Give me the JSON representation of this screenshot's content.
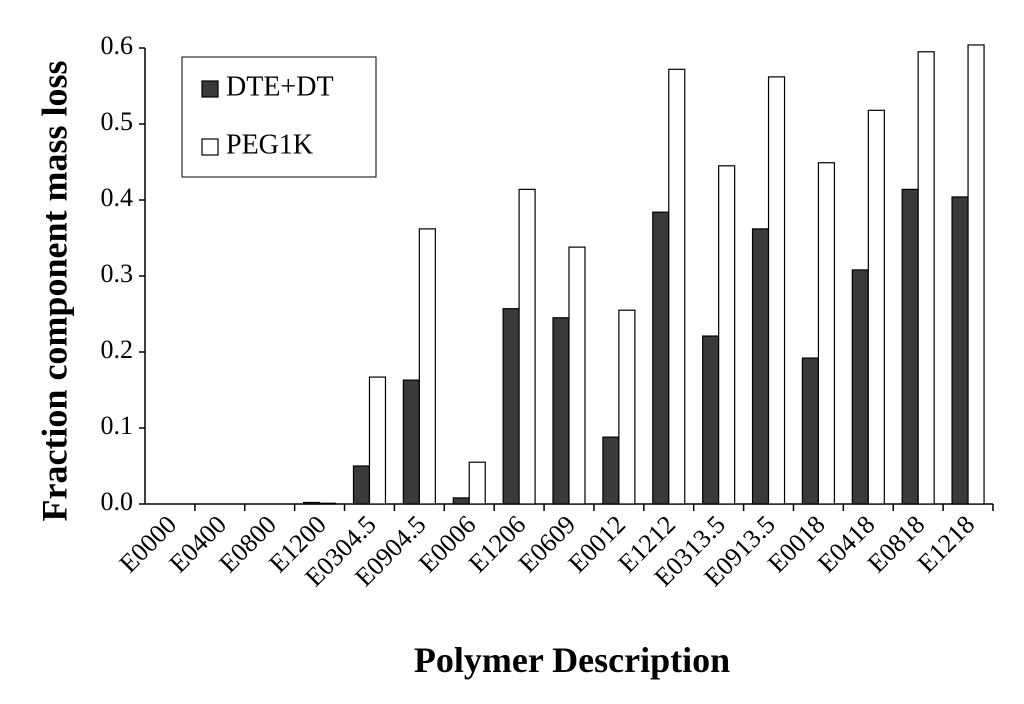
{
  "chart_data": {
    "type": "bar",
    "x_label": "Polymer Description",
    "y_label": "Fraction component mass loss",
    "categories": [
      "E0000",
      "E0400",
      "E0800",
      "E1200",
      "E0304.5",
      "E0904.5",
      "E0006",
      "E1206",
      "E0609",
      "E0012",
      "E1212",
      "E0313.5",
      "E0913.5",
      "E0018",
      "E0418",
      "E0818",
      "E1218"
    ],
    "series": [
      {
        "name": "DTE+DT",
        "color": "#3a3a3a",
        "values": [
          0,
          0,
          0,
          0.002,
          0.05,
          0.163,
          0.008,
          0.257,
          0.245,
          0.088,
          0.384,
          0.221,
          0.362,
          0.192,
          0.308,
          0.414,
          0.404
        ]
      },
      {
        "name": "PEG1K",
        "color": "#ffffff",
        "values": [
          0,
          0,
          0,
          0.001,
          0.167,
          0.362,
          0.055,
          0.414,
          0.338,
          0.255,
          0.572,
          0.445,
          0.562,
          0.449,
          0.518,
          0.595,
          0.604
        ]
      }
    ],
    "ylim": [
      0,
      0.6
    ],
    "yticks": [
      {
        "value": 0,
        "label": "0.0"
      },
      0.1,
      0.2,
      0.3,
      0.4,
      0.5,
      0.6
    ],
    "legend": "upper left"
  }
}
